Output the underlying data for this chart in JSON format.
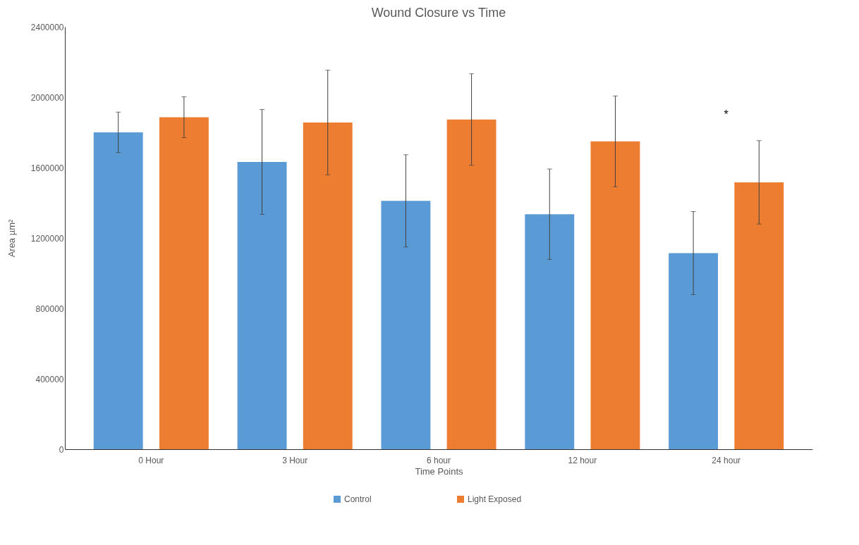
{
  "chart_data": {
    "type": "bar",
    "title": "Wound  Closure vs Time",
    "xlabel": "Time Points",
    "ylabel": "Area  µm²",
    "categories": [
      "0 Hour",
      "3 Hour",
      "6 hour",
      "12 hour",
      "24 hour"
    ],
    "series": [
      {
        "name": "Control",
        "color": "#5b9bd5",
        "values": [
          1800000,
          1632000,
          1411000,
          1335000,
          1114000
        ],
        "errors": [
          115000,
          298000,
          262000,
          257000,
          236000
        ]
      },
      {
        "name": "Light Exposed",
        "color": "#ed7d31",
        "values": [
          1886000,
          1856000,
          1873000,
          1749000,
          1516000
        ],
        "errors": [
          116000,
          297000,
          260000,
          258000,
          237000
        ]
      }
    ],
    "ylim": [
      0,
      2400000
    ],
    "yticks": [
      0,
      400000,
      800000,
      1200000,
      1600000,
      2000000,
      2400000
    ],
    "grid": false,
    "legend": "bottom",
    "annotations": [
      "*"
    ]
  }
}
